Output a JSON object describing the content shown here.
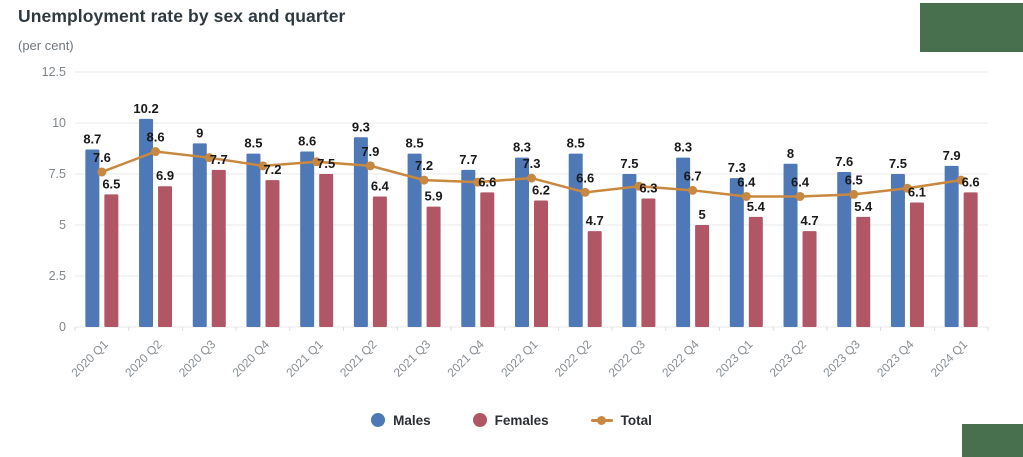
{
  "header": {
    "title": "Unemployment rate by sex and quarter",
    "subtitle": "(per cent)"
  },
  "branding": {
    "top_right_box_color": "#48704e",
    "bottom_right_box_color": "#48704e"
  },
  "chart_data": {
    "type": "bar",
    "title": "Unemployment rate by sex and quarter",
    "ylabel": "(per cent)",
    "xlabel": "",
    "ylim": [
      0,
      12.5
    ],
    "yticks": [
      0,
      2.5,
      5,
      7.5,
      10,
      12.5
    ],
    "grid": true,
    "legend_position": "bottom",
    "categories": [
      "2020 Q1",
      "2020 Q2",
      "2020 Q3",
      "2020 Q4",
      "2021 Q1",
      "2021 Q2",
      "2021 Q3",
      "2021 Q4",
      "2022 Q1",
      "2022 Q2",
      "2022 Q3",
      "2022 Q4",
      "2023 Q1",
      "2023 Q2",
      "2023 Q3",
      "2023 Q4",
      "2024 Q1"
    ],
    "series": [
      {
        "name": "Males",
        "type": "bar",
        "color": "#4e79b6",
        "values": [
          8.7,
          10.2,
          9,
          8.5,
          8.6,
          9.3,
          8.5,
          7.7,
          8.3,
          8.5,
          7.5,
          8.3,
          7.3,
          8,
          7.6,
          7.5,
          7.9
        ]
      },
      {
        "name": "Females",
        "type": "bar",
        "color": "#b15665",
        "values": [
          6.5,
          6.9,
          7.7,
          7.2,
          7.5,
          6.4,
          5.9,
          6.6,
          6.2,
          4.7,
          6.3,
          5,
          5.4,
          4.7,
          5.4,
          6.1,
          6.6
        ]
      },
      {
        "name": "Total",
        "type": "line",
        "color": "#c9883f",
        "values": [
          7.6,
          8.6,
          8.3,
          7.9,
          8.1,
          7.9,
          7.2,
          7.1,
          7.3,
          6.6,
          6.9,
          6.7,
          6.4,
          6.4,
          6.5,
          6.8,
          7.2
        ],
        "label_visible": [
          true,
          true,
          false,
          false,
          false,
          true,
          true,
          false,
          true,
          true,
          false,
          true,
          true,
          true,
          true,
          false,
          false
        ]
      }
    ]
  }
}
